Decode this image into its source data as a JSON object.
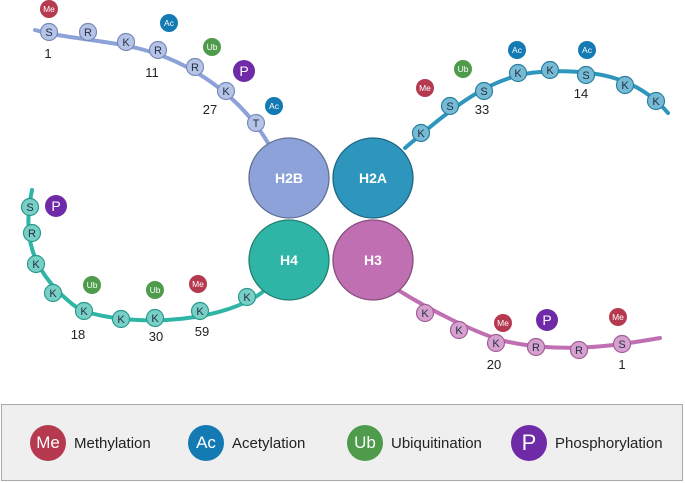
{
  "colors": {
    "me": "#b5394f",
    "ac": "#137ab3",
    "ub": "#4f9b4c",
    "p": "#6f2aa8",
    "h2b": "#8ca2d8",
    "h2a": "#2e95bd",
    "h4": "#2fb5a5",
    "h3": "#c06fb3"
  },
  "histones": {
    "h2b": {
      "label": "H2B"
    },
    "h2a": {
      "label": "H2A"
    },
    "h4": {
      "label": "H4"
    },
    "h3": {
      "label": "H3"
    }
  },
  "tails": {
    "h2b": {
      "residues": [
        "S",
        "R",
        "K",
        "R",
        "R",
        "K",
        "T"
      ],
      "positions": [
        "1",
        "11",
        "27"
      ],
      "marks": [
        {
          "type": "me",
          "label": "Me"
        },
        {
          "type": "ac",
          "label": "Ac"
        },
        {
          "type": "ub",
          "label": "Ub"
        },
        {
          "type": "p",
          "label": "P"
        },
        {
          "type": "ac",
          "label": "Ac"
        }
      ]
    },
    "h2a": {
      "residues": [
        "K",
        "S",
        "S",
        "K",
        "K",
        "S",
        "K",
        "K"
      ],
      "positions": [
        "33",
        "14"
      ],
      "marks": [
        {
          "type": "me",
          "label": "Me"
        },
        {
          "type": "ub",
          "label": "Ub"
        },
        {
          "type": "ac",
          "label": "Ac"
        },
        {
          "type": "ac",
          "label": "Ac"
        }
      ]
    },
    "h4": {
      "residues": [
        "S",
        "R",
        "K",
        "K",
        "K",
        "K",
        "K",
        "K",
        "K"
      ],
      "positions": [
        "18",
        "30",
        "59"
      ],
      "marks": [
        {
          "type": "p",
          "label": "P"
        },
        {
          "type": "ub",
          "label": "Ub"
        },
        {
          "type": "ub",
          "label": "Ub"
        },
        {
          "type": "me",
          "label": "Me"
        }
      ]
    },
    "h3": {
      "residues": [
        "K",
        "K",
        "K",
        "R",
        "R",
        "S"
      ],
      "positions": [
        "20",
        "1"
      ],
      "marks": [
        {
          "type": "me",
          "label": "Me"
        },
        {
          "type": "p",
          "label": "P"
        },
        {
          "type": "me",
          "label": "Me"
        }
      ]
    }
  },
  "legend": {
    "items": [
      {
        "type": "me",
        "badge": "Me",
        "label": "Methylation"
      },
      {
        "type": "ac",
        "badge": "Ac",
        "label": "Acetylation"
      },
      {
        "type": "ub",
        "badge": "Ub",
        "label": "Ubiquitination"
      },
      {
        "type": "p",
        "badge": "P",
        "label": "Phosphorylation"
      }
    ]
  }
}
